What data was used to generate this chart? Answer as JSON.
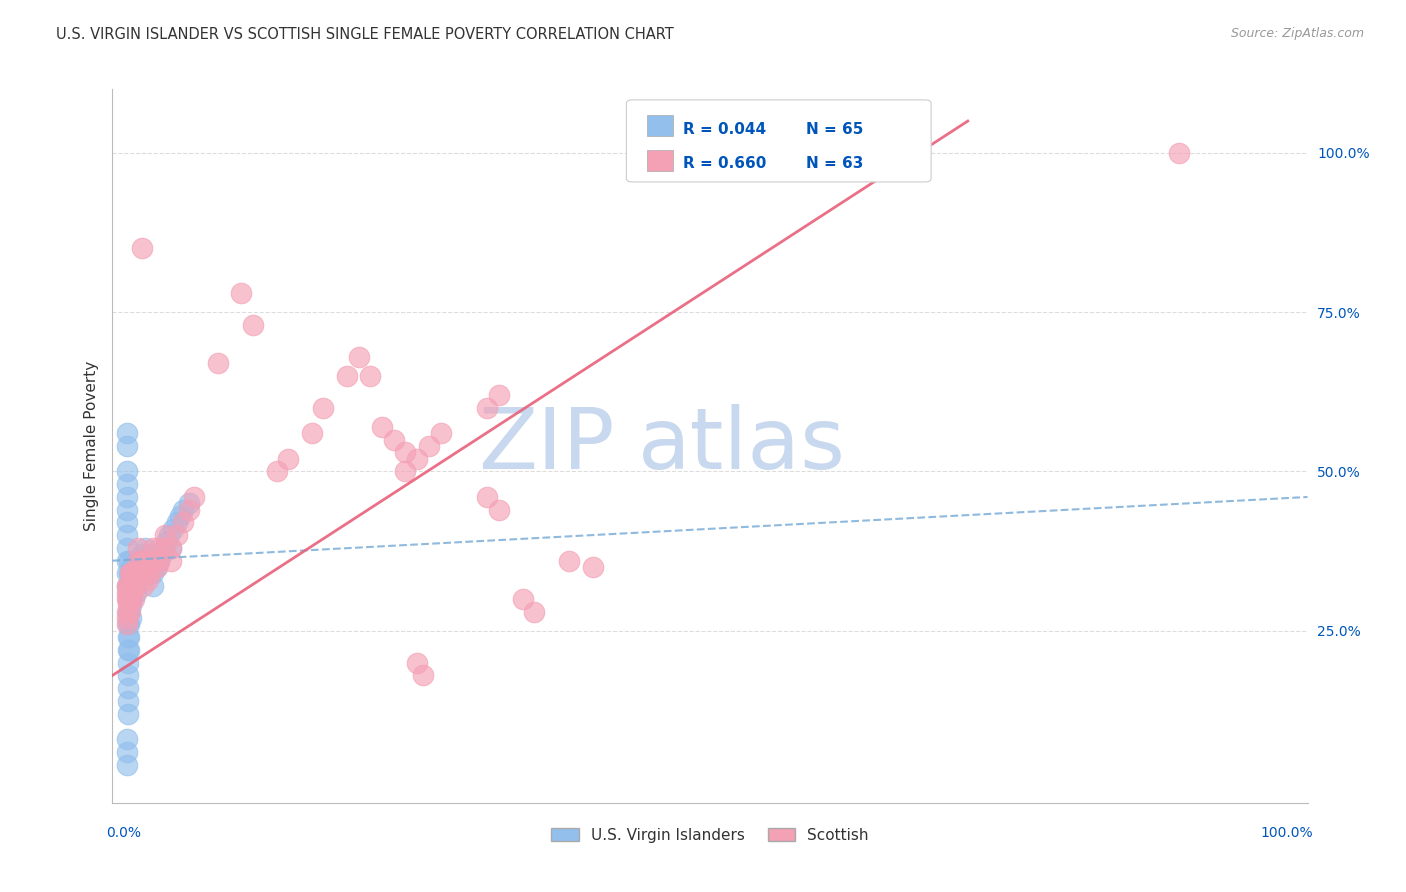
{
  "title": "U.S. VIRGIN ISLANDER VS SCOTTISH SINGLE FEMALE POVERTY CORRELATION CHART",
  "source": "Source: ZipAtlas.com",
  "ylabel": "Single Female Poverty",
  "ytick_labels": [
    "25.0%",
    "50.0%",
    "75.0%",
    "100.0%"
  ],
  "ytick_values": [
    0.25,
    0.5,
    0.75,
    1.0
  ],
  "legend_label1": "U.S. Virgin Islanders",
  "legend_label2": "Scottish",
  "R1": 0.044,
  "N1": 65,
  "R2": 0.66,
  "N2": 63,
  "blue_color": "#92BFEC",
  "pink_color": "#F4A0B5",
  "blue_line_color": "#7BADD8",
  "pink_line_color": "#E8607A",
  "title_color": "#333333",
  "axis_label_color": "#0055BB",
  "watermark_color": "#C8D8EE",
  "grid_color": "#DDDDDD",
  "background_color": "#FFFFFF",
  "blue_x": [
    0.002,
    0.002,
    0.002,
    0.002,
    0.002,
    0.002,
    0.002,
    0.002,
    0.002,
    0.002,
    0.003,
    0.003,
    0.003,
    0.003,
    0.003,
    0.003,
    0.003,
    0.003,
    0.003,
    0.003,
    0.004,
    0.004,
    0.004,
    0.004,
    0.004,
    0.004,
    0.004,
    0.004,
    0.006,
    0.006,
    0.006,
    0.006,
    0.006,
    0.007,
    0.007,
    0.007,
    0.01,
    0.01,
    0.01,
    0.012,
    0.012,
    0.015,
    0.015,
    0.018,
    0.02,
    0.022,
    0.025,
    0.025,
    0.028,
    0.03,
    0.032,
    0.034,
    0.036,
    0.038,
    0.04,
    0.042,
    0.045,
    0.048,
    0.05,
    0.055,
    0.002,
    0.002,
    0.002,
    0.002,
    0.002
  ],
  "blue_y": [
    0.5,
    0.48,
    0.46,
    0.44,
    0.42,
    0.4,
    0.38,
    0.36,
    0.34,
    0.32,
    0.3,
    0.28,
    0.26,
    0.24,
    0.22,
    0.2,
    0.18,
    0.16,
    0.14,
    0.12,
    0.36,
    0.34,
    0.32,
    0.3,
    0.28,
    0.26,
    0.24,
    0.22,
    0.35,
    0.33,
    0.31,
    0.29,
    0.27,
    0.34,
    0.32,
    0.3,
    0.35,
    0.33,
    0.31,
    0.36,
    0.34,
    0.37,
    0.35,
    0.38,
    0.36,
    0.37,
    0.34,
    0.32,
    0.35,
    0.36,
    0.37,
    0.38,
    0.39,
    0.4,
    0.38,
    0.41,
    0.42,
    0.43,
    0.44,
    0.45,
    0.56,
    0.54,
    0.08,
    0.06,
    0.04
  ],
  "pink_x": [
    0.002,
    0.002,
    0.002,
    0.002,
    0.002,
    0.002,
    0.003,
    0.003,
    0.003,
    0.003,
    0.005,
    0.005,
    0.005,
    0.005,
    0.006,
    0.006,
    0.006,
    0.007,
    0.007,
    0.008,
    0.008,
    0.01,
    0.01,
    0.012,
    0.012,
    0.014,
    0.014,
    0.016,
    0.016,
    0.018,
    0.018,
    0.02,
    0.02,
    0.022,
    0.022,
    0.025,
    0.025,
    0.028,
    0.03,
    0.03,
    0.035,
    0.035,
    0.04,
    0.04,
    0.045,
    0.05,
    0.055,
    0.06,
    0.13,
    0.14,
    0.16,
    0.17,
    0.19,
    0.24,
    0.25,
    0.26,
    0.27,
    0.31,
    0.32,
    0.38,
    0.4,
    0.9,
    0.25,
    0.255
  ],
  "pink_y": [
    0.26,
    0.27,
    0.28,
    0.3,
    0.31,
    0.32,
    0.29,
    0.3,
    0.31,
    0.32,
    0.28,
    0.3,
    0.32,
    0.34,
    0.3,
    0.32,
    0.34,
    0.32,
    0.34,
    0.3,
    0.34,
    0.32,
    0.34,
    0.36,
    0.38,
    0.34,
    0.36,
    0.32,
    0.34,
    0.34,
    0.36,
    0.33,
    0.35,
    0.34,
    0.36,
    0.36,
    0.38,
    0.35,
    0.36,
    0.38,
    0.38,
    0.4,
    0.36,
    0.38,
    0.4,
    0.42,
    0.44,
    0.46,
    0.5,
    0.52,
    0.56,
    0.6,
    0.65,
    0.5,
    0.52,
    0.54,
    0.56,
    0.6,
    0.62,
    0.36,
    0.35,
    1.0,
    0.2,
    0.18
  ],
  "pink_x_top": [
    0.015,
    0.08,
    0.1,
    0.11,
    0.2,
    0.21,
    0.22,
    0.23,
    0.24,
    0.31,
    0.32,
    0.34,
    0.35
  ],
  "pink_y_top": [
    0.85,
    0.67,
    0.78,
    0.73,
    0.68,
    0.65,
    0.57,
    0.55,
    0.53,
    0.46,
    0.44,
    0.3,
    0.28
  ]
}
